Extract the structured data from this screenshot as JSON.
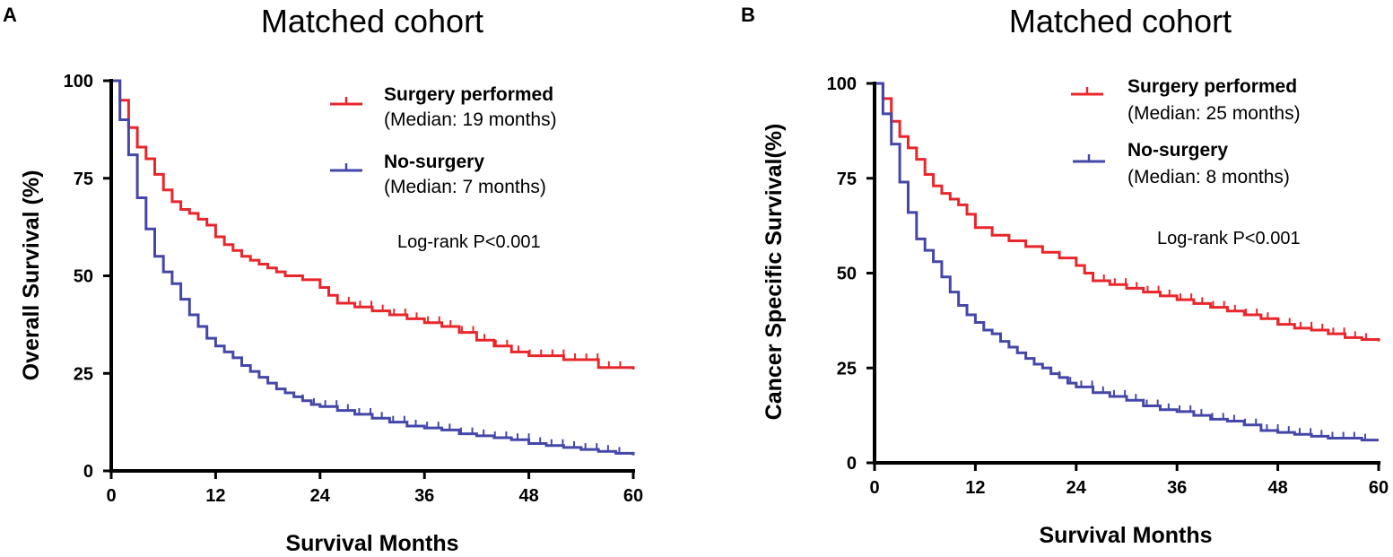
{
  "chart_data": [
    {
      "type": "line",
      "panel": "A",
      "title": "Matched cohort",
      "xlabel": "Survival Months",
      "ylabel": "Overall Survival (%)",
      "xlim": [
        0,
        60
      ],
      "ylim": [
        0,
        100
      ],
      "xticks": [
        "0",
        "12",
        "24",
        "36",
        "48",
        "60"
      ],
      "yticks": [
        "0",
        "25",
        "50",
        "75",
        "100"
      ],
      "grid": false,
      "legend_position": "top-right",
      "annotation": "Log-rank P<0.001",
      "series": [
        {
          "name": "Surgery performed",
          "median_label": "(Median: 19 months)",
          "color": "#e8262b",
          "x": [
            0,
            1,
            2,
            3,
            4,
            5,
            6,
            7,
            8,
            9,
            10,
            11,
            12,
            13,
            14,
            15,
            16,
            17,
            18,
            19,
            20,
            22,
            24,
            25,
            26,
            28,
            30,
            32,
            34,
            36,
            38,
            40,
            42,
            44,
            46,
            48,
            52,
            56,
            60
          ],
          "y": [
            100,
            95,
            88,
            83,
            80,
            76,
            72,
            69,
            67,
            66,
            64.5,
            63,
            60,
            58,
            56.5,
            55,
            54,
            53,
            52,
            51,
            50,
            49,
            47,
            45,
            43,
            42,
            41,
            40,
            39,
            38,
            37,
            35.5,
            33.5,
            32,
            30.5,
            29.5,
            28.5,
            26.5,
            26
          ]
        },
        {
          "name": "No-surgery",
          "median_label": "(Median: 7 months)",
          "color": "#4447a8",
          "x": [
            0,
            1,
            2,
            3,
            4,
            5,
            6,
            7,
            8,
            9,
            10,
            11,
            12,
            13,
            14,
            15,
            16,
            17,
            18,
            19,
            20,
            21,
            22,
            23,
            24,
            26,
            28,
            30,
            32,
            34,
            36,
            38,
            40,
            42,
            44,
            46,
            48,
            50,
            52,
            54,
            56,
            58,
            60
          ],
          "y": [
            100,
            90,
            81,
            70,
            62,
            55,
            51,
            48,
            44,
            40,
            37,
            34,
            32,
            30.5,
            29,
            27,
            25.5,
            24,
            22.5,
            21,
            20,
            19,
            18,
            17,
            16.5,
            15.5,
            14.5,
            13.5,
            12.5,
            11.5,
            11,
            10.5,
            9.5,
            9,
            8.5,
            8,
            7,
            6.5,
            6,
            5.5,
            5,
            4.5,
            4
          ]
        }
      ]
    },
    {
      "type": "line",
      "panel": "B",
      "title": "Matched cohort",
      "xlabel": "Survival Months",
      "ylabel": "Cancer Specific Survival(%)",
      "xlim": [
        0,
        60
      ],
      "ylim": [
        0,
        100
      ],
      "xticks": [
        "0",
        "12",
        "24",
        "36",
        "48",
        "60"
      ],
      "yticks": [
        "0",
        "25",
        "50",
        "75",
        "100"
      ],
      "grid": false,
      "legend_position": "top-right",
      "annotation": "Log-rank P<0.001",
      "series": [
        {
          "name": "Surgery performed",
          "median_label": "(Median: 25 months)",
          "color": "#e8262b",
          "x": [
            0,
            1,
            2,
            3,
            4,
            5,
            6,
            7,
            8,
            9,
            10,
            11,
            12,
            14,
            16,
            18,
            20,
            22,
            24,
            25,
            26,
            28,
            30,
            32,
            34,
            36,
            38,
            40,
            42,
            44,
            46,
            48,
            50,
            52,
            54,
            56,
            58,
            60
          ],
          "y": [
            100,
            96,
            90,
            86,
            83,
            80,
            76,
            73,
            71,
            69.5,
            68,
            65.5,
            62,
            60,
            58.5,
            57,
            55.5,
            54,
            52,
            50,
            48,
            47,
            46,
            45,
            44,
            43,
            42,
            41,
            40,
            39,
            38,
            36.5,
            35.5,
            35,
            34,
            33,
            32.5,
            32
          ]
        },
        {
          "name": "No-surgery",
          "median_label": "(Median: 8 months)",
          "color": "#4447a8",
          "x": [
            0,
            1,
            2,
            3,
            4,
            5,
            6,
            7,
            8,
            9,
            10,
            11,
            12,
            13,
            14,
            15,
            16,
            17,
            18,
            19,
            20,
            21,
            22,
            23,
            24,
            26,
            28,
            30,
            32,
            34,
            36,
            38,
            40,
            42,
            44,
            46,
            48,
            50,
            52,
            54,
            56,
            58,
            60
          ],
          "y": [
            100,
            92,
            84,
            74,
            66,
            59,
            56,
            53,
            49,
            45,
            41.5,
            39,
            37,
            35,
            34,
            32,
            30.5,
            29,
            27.5,
            26,
            25,
            23.5,
            22.5,
            21,
            20,
            18.5,
            17.5,
            16.5,
            15,
            14,
            13.5,
            12.5,
            11.5,
            11,
            10,
            8.5,
            8,
            7.5,
            7,
            6.5,
            6.5,
            6,
            6
          ]
        }
      ]
    }
  ]
}
